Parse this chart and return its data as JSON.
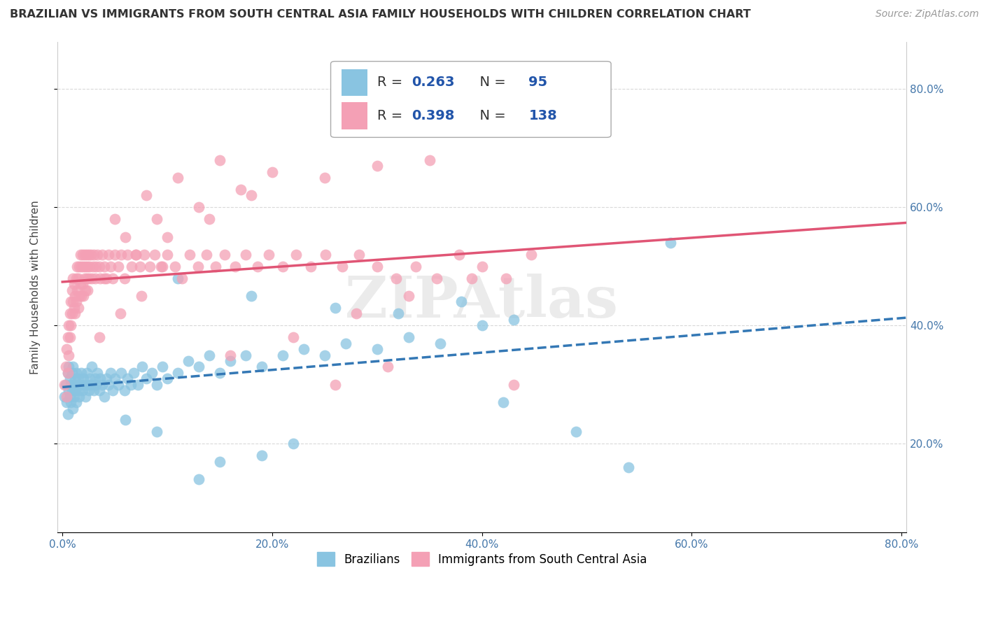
{
  "title": "BRAZILIAN VS IMMIGRANTS FROM SOUTH CENTRAL ASIA FAMILY HOUSEHOLDS WITH CHILDREN CORRELATION CHART",
  "source": "Source: ZipAtlas.com",
  "xlabel": "",
  "ylabel": "Family Households with Children",
  "xlim": [
    -0.005,
    0.805
  ],
  "ylim": [
    0.05,
    0.88
  ],
  "xticks": [
    0.0,
    0.2,
    0.4,
    0.6,
    0.8
  ],
  "yticks": [
    0.2,
    0.4,
    0.6,
    0.8
  ],
  "xticklabels": [
    "0.0%",
    "20.0%",
    "40.0%",
    "60.0%",
    "80.0%"
  ],
  "yticklabels": [
    "20.0%",
    "40.0%",
    "60.0%",
    "80.0%"
  ],
  "watermark": "ZIPAtlas",
  "legend_labels": [
    "Brazilians",
    "Immigrants from South Central Asia"
  ],
  "series": [
    {
      "name": "Brazilians",
      "R": 0.263,
      "N": 95,
      "color": "#89c4e1",
      "line_color": "#3478b5",
      "marker_color": "#89c4e1",
      "line_style": "--",
      "x": [
        0.002,
        0.003,
        0.004,
        0.005,
        0.005,
        0.006,
        0.006,
        0.007,
        0.007,
        0.008,
        0.008,
        0.009,
        0.009,
        0.01,
        0.01,
        0.011,
        0.011,
        0.012,
        0.012,
        0.013,
        0.013,
        0.014,
        0.015,
        0.015,
        0.016,
        0.017,
        0.018,
        0.019,
        0.02,
        0.021,
        0.022,
        0.023,
        0.024,
        0.025,
        0.026,
        0.027,
        0.028,
        0.03,
        0.031,
        0.032,
        0.033,
        0.035,
        0.036,
        0.038,
        0.04,
        0.042,
        0.044,
        0.046,
        0.048,
        0.05,
        0.053,
        0.056,
        0.059,
        0.062,
        0.065,
        0.068,
        0.072,
        0.076,
        0.08,
        0.085,
        0.09,
        0.095,
        0.1,
        0.11,
        0.12,
        0.13,
        0.14,
        0.15,
        0.16,
        0.175,
        0.19,
        0.21,
        0.23,
        0.25,
        0.27,
        0.3,
        0.33,
        0.36,
        0.4,
        0.43,
        0.11,
        0.18,
        0.26,
        0.32,
        0.38,
        0.19,
        0.22,
        0.15,
        0.09,
        0.58,
        0.13,
        0.06,
        0.42,
        0.49,
        0.54
      ],
      "y": [
        0.28,
        0.3,
        0.27,
        0.32,
        0.25,
        0.29,
        0.33,
        0.28,
        0.31,
        0.3,
        0.27,
        0.32,
        0.29,
        0.26,
        0.33,
        0.3,
        0.28,
        0.31,
        0.29,
        0.27,
        0.32,
        0.3,
        0.29,
        0.31,
        0.28,
        0.3,
        0.32,
        0.29,
        0.31,
        0.3,
        0.28,
        0.32,
        0.3,
        0.29,
        0.31,
        0.3,
        0.33,
        0.29,
        0.31,
        0.3,
        0.32,
        0.29,
        0.31,
        0.3,
        0.28,
        0.31,
        0.3,
        0.32,
        0.29,
        0.31,
        0.3,
        0.32,
        0.29,
        0.31,
        0.3,
        0.32,
        0.3,
        0.33,
        0.31,
        0.32,
        0.3,
        0.33,
        0.31,
        0.32,
        0.34,
        0.33,
        0.35,
        0.32,
        0.34,
        0.35,
        0.33,
        0.35,
        0.36,
        0.35,
        0.37,
        0.36,
        0.38,
        0.37,
        0.4,
        0.41,
        0.48,
        0.45,
        0.43,
        0.42,
        0.44,
        0.18,
        0.2,
        0.17,
        0.22,
        0.54,
        0.14,
        0.24,
        0.27,
        0.22,
        0.16
      ]
    },
    {
      "name": "Immigrants from South Central Asia",
      "R": 0.398,
      "N": 138,
      "color": "#f4a0b5",
      "line_color": "#e05575",
      "marker_color": "#f4a0b5",
      "line_style": "-",
      "x": [
        0.002,
        0.003,
        0.004,
        0.004,
        0.005,
        0.005,
        0.006,
        0.006,
        0.007,
        0.007,
        0.008,
        0.008,
        0.009,
        0.009,
        0.01,
        0.01,
        0.011,
        0.011,
        0.012,
        0.012,
        0.013,
        0.013,
        0.014,
        0.014,
        0.015,
        0.015,
        0.016,
        0.016,
        0.017,
        0.017,
        0.018,
        0.018,
        0.019,
        0.019,
        0.02,
        0.02,
        0.021,
        0.021,
        0.022,
        0.022,
        0.023,
        0.023,
        0.024,
        0.024,
        0.025,
        0.025,
        0.026,
        0.027,
        0.028,
        0.029,
        0.03,
        0.031,
        0.032,
        0.033,
        0.035,
        0.036,
        0.038,
        0.04,
        0.042,
        0.044,
        0.046,
        0.048,
        0.05,
        0.053,
        0.056,
        0.059,
        0.062,
        0.066,
        0.07,
        0.074,
        0.078,
        0.083,
        0.088,
        0.094,
        0.1,
        0.107,
        0.114,
        0.121,
        0.129,
        0.137,
        0.146,
        0.155,
        0.165,
        0.175,
        0.186,
        0.197,
        0.21,
        0.223,
        0.237,
        0.251,
        0.267,
        0.283,
        0.3,
        0.318,
        0.337,
        0.357,
        0.378,
        0.4,
        0.423,
        0.447,
        0.05,
        0.08,
        0.11,
        0.15,
        0.2,
        0.25,
        0.3,
        0.35,
        0.06,
        0.09,
        0.13,
        0.17,
        0.04,
        0.07,
        0.1,
        0.14,
        0.18,
        0.035,
        0.055,
        0.075,
        0.095,
        0.16,
        0.22,
        0.28,
        0.33,
        0.39,
        0.26,
        0.31,
        0.43
      ],
      "y": [
        0.3,
        0.33,
        0.36,
        0.28,
        0.38,
        0.32,
        0.4,
        0.35,
        0.42,
        0.38,
        0.44,
        0.4,
        0.46,
        0.42,
        0.44,
        0.48,
        0.43,
        0.47,
        0.45,
        0.42,
        0.48,
        0.44,
        0.5,
        0.46,
        0.48,
        0.43,
        0.5,
        0.45,
        0.52,
        0.47,
        0.5,
        0.45,
        0.52,
        0.47,
        0.5,
        0.45,
        0.52,
        0.48,
        0.5,
        0.46,
        0.52,
        0.48,
        0.5,
        0.46,
        0.52,
        0.48,
        0.5,
        0.52,
        0.48,
        0.5,
        0.52,
        0.48,
        0.5,
        0.52,
        0.5,
        0.48,
        0.52,
        0.5,
        0.48,
        0.52,
        0.5,
        0.48,
        0.52,
        0.5,
        0.52,
        0.48,
        0.52,
        0.5,
        0.52,
        0.5,
        0.52,
        0.5,
        0.52,
        0.5,
        0.52,
        0.5,
        0.48,
        0.52,
        0.5,
        0.52,
        0.5,
        0.52,
        0.5,
        0.52,
        0.5,
        0.52,
        0.5,
        0.52,
        0.5,
        0.52,
        0.5,
        0.52,
        0.5,
        0.48,
        0.5,
        0.48,
        0.52,
        0.5,
        0.48,
        0.52,
        0.58,
        0.62,
        0.65,
        0.68,
        0.66,
        0.65,
        0.67,
        0.68,
        0.55,
        0.58,
        0.6,
        0.63,
        0.48,
        0.52,
        0.55,
        0.58,
        0.62,
        0.38,
        0.42,
        0.45,
        0.5,
        0.35,
        0.38,
        0.42,
        0.45,
        0.48,
        0.3,
        0.33,
        0.3
      ]
    }
  ],
  "background_color": "#ffffff",
  "grid_color": "#d0d0d0",
  "title_fontsize": 11.5,
  "axis_label_fontsize": 11,
  "tick_fontsize": 11,
  "legend_fontsize": 14
}
